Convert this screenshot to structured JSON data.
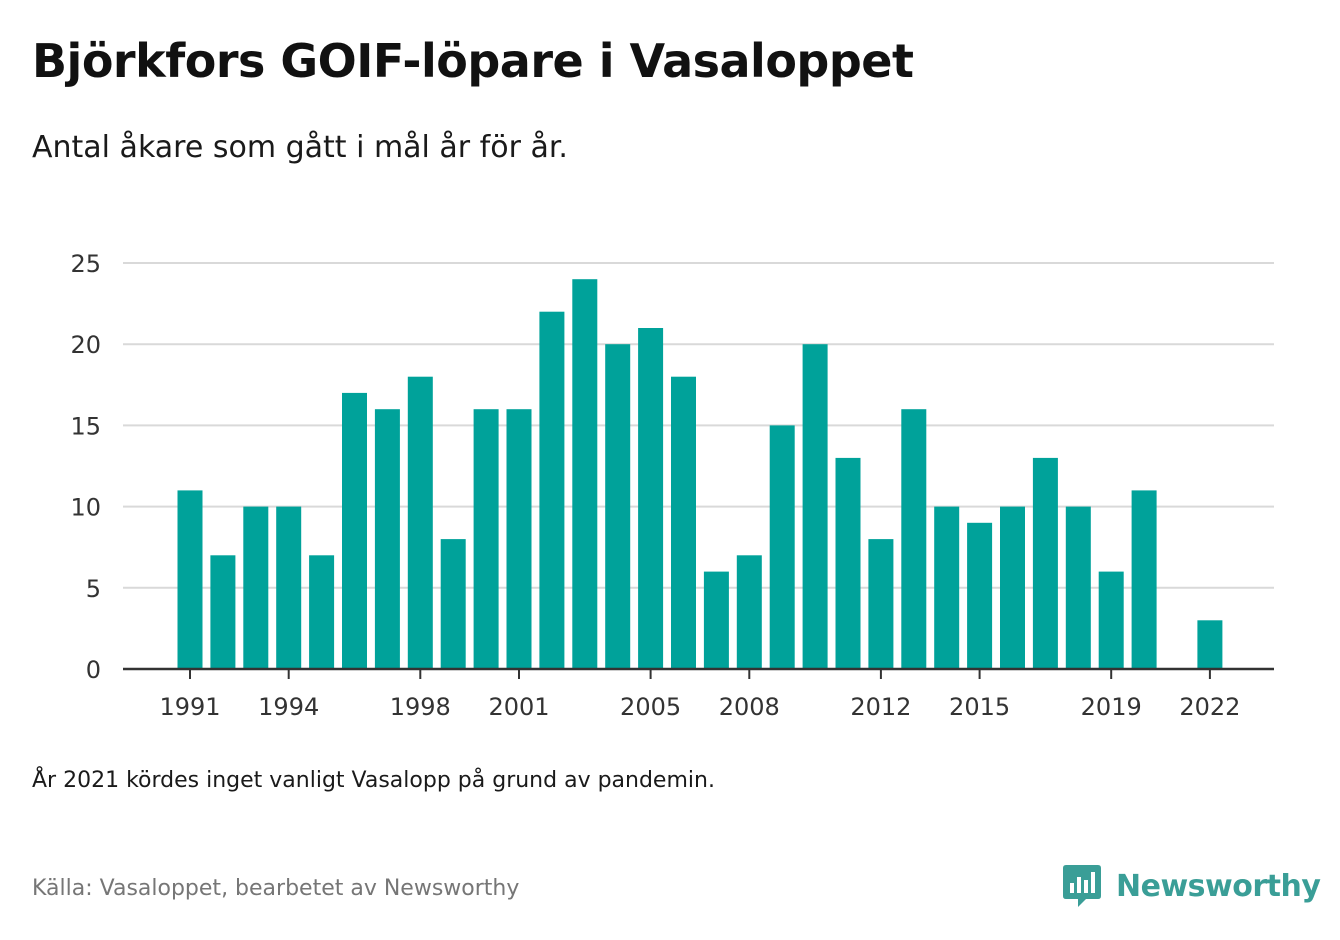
{
  "header": {
    "title": "Björkfors GOIF-löpare i Vasaloppet",
    "subtitle": "Antal åkare som gått i mål år för år."
  },
  "footer": {
    "note": "År 2021 kördes inget vanligt Vasalopp på grund av pandemin.",
    "source": "Källa: Vasaloppet, bearbetet av Newsworthy",
    "brand": "Newsworthy",
    "brand_icon": "bar-chart-speech-bubble-icon"
  },
  "colors": {
    "bar": "#00a29a",
    "grid": "#d9d9d9",
    "axis": "#333333",
    "brand": "#3a9e97"
  },
  "chart_data": {
    "type": "bar",
    "categories": [
      "1991",
      "1992",
      "1993",
      "1994",
      "1995",
      "1996",
      "1997",
      "1998",
      "1999",
      "2000",
      "2001",
      "2002",
      "2003",
      "2004",
      "2005",
      "2006",
      "2007",
      "2008",
      "2009",
      "2010",
      "2011",
      "2012",
      "2013",
      "2014",
      "2015",
      "2016",
      "2017",
      "2018",
      "2019",
      "2020",
      "2021",
      "2022"
    ],
    "values": [
      11,
      7,
      10,
      10,
      7,
      17,
      16,
      18,
      8,
      16,
      16,
      22,
      24,
      20,
      21,
      18,
      6,
      7,
      15,
      20,
      13,
      8,
      16,
      10,
      9,
      10,
      13,
      10,
      6,
      11,
      null,
      3
    ],
    "x_tick_labels": [
      "1991",
      "1994",
      "1998",
      "2001",
      "2005",
      "2008",
      "2012",
      "2015",
      "2019",
      "2022"
    ],
    "y_ticks": [
      0,
      5,
      10,
      15,
      20,
      25
    ],
    "ylim": [
      0,
      25
    ],
    "grid": true,
    "legend": "none"
  }
}
